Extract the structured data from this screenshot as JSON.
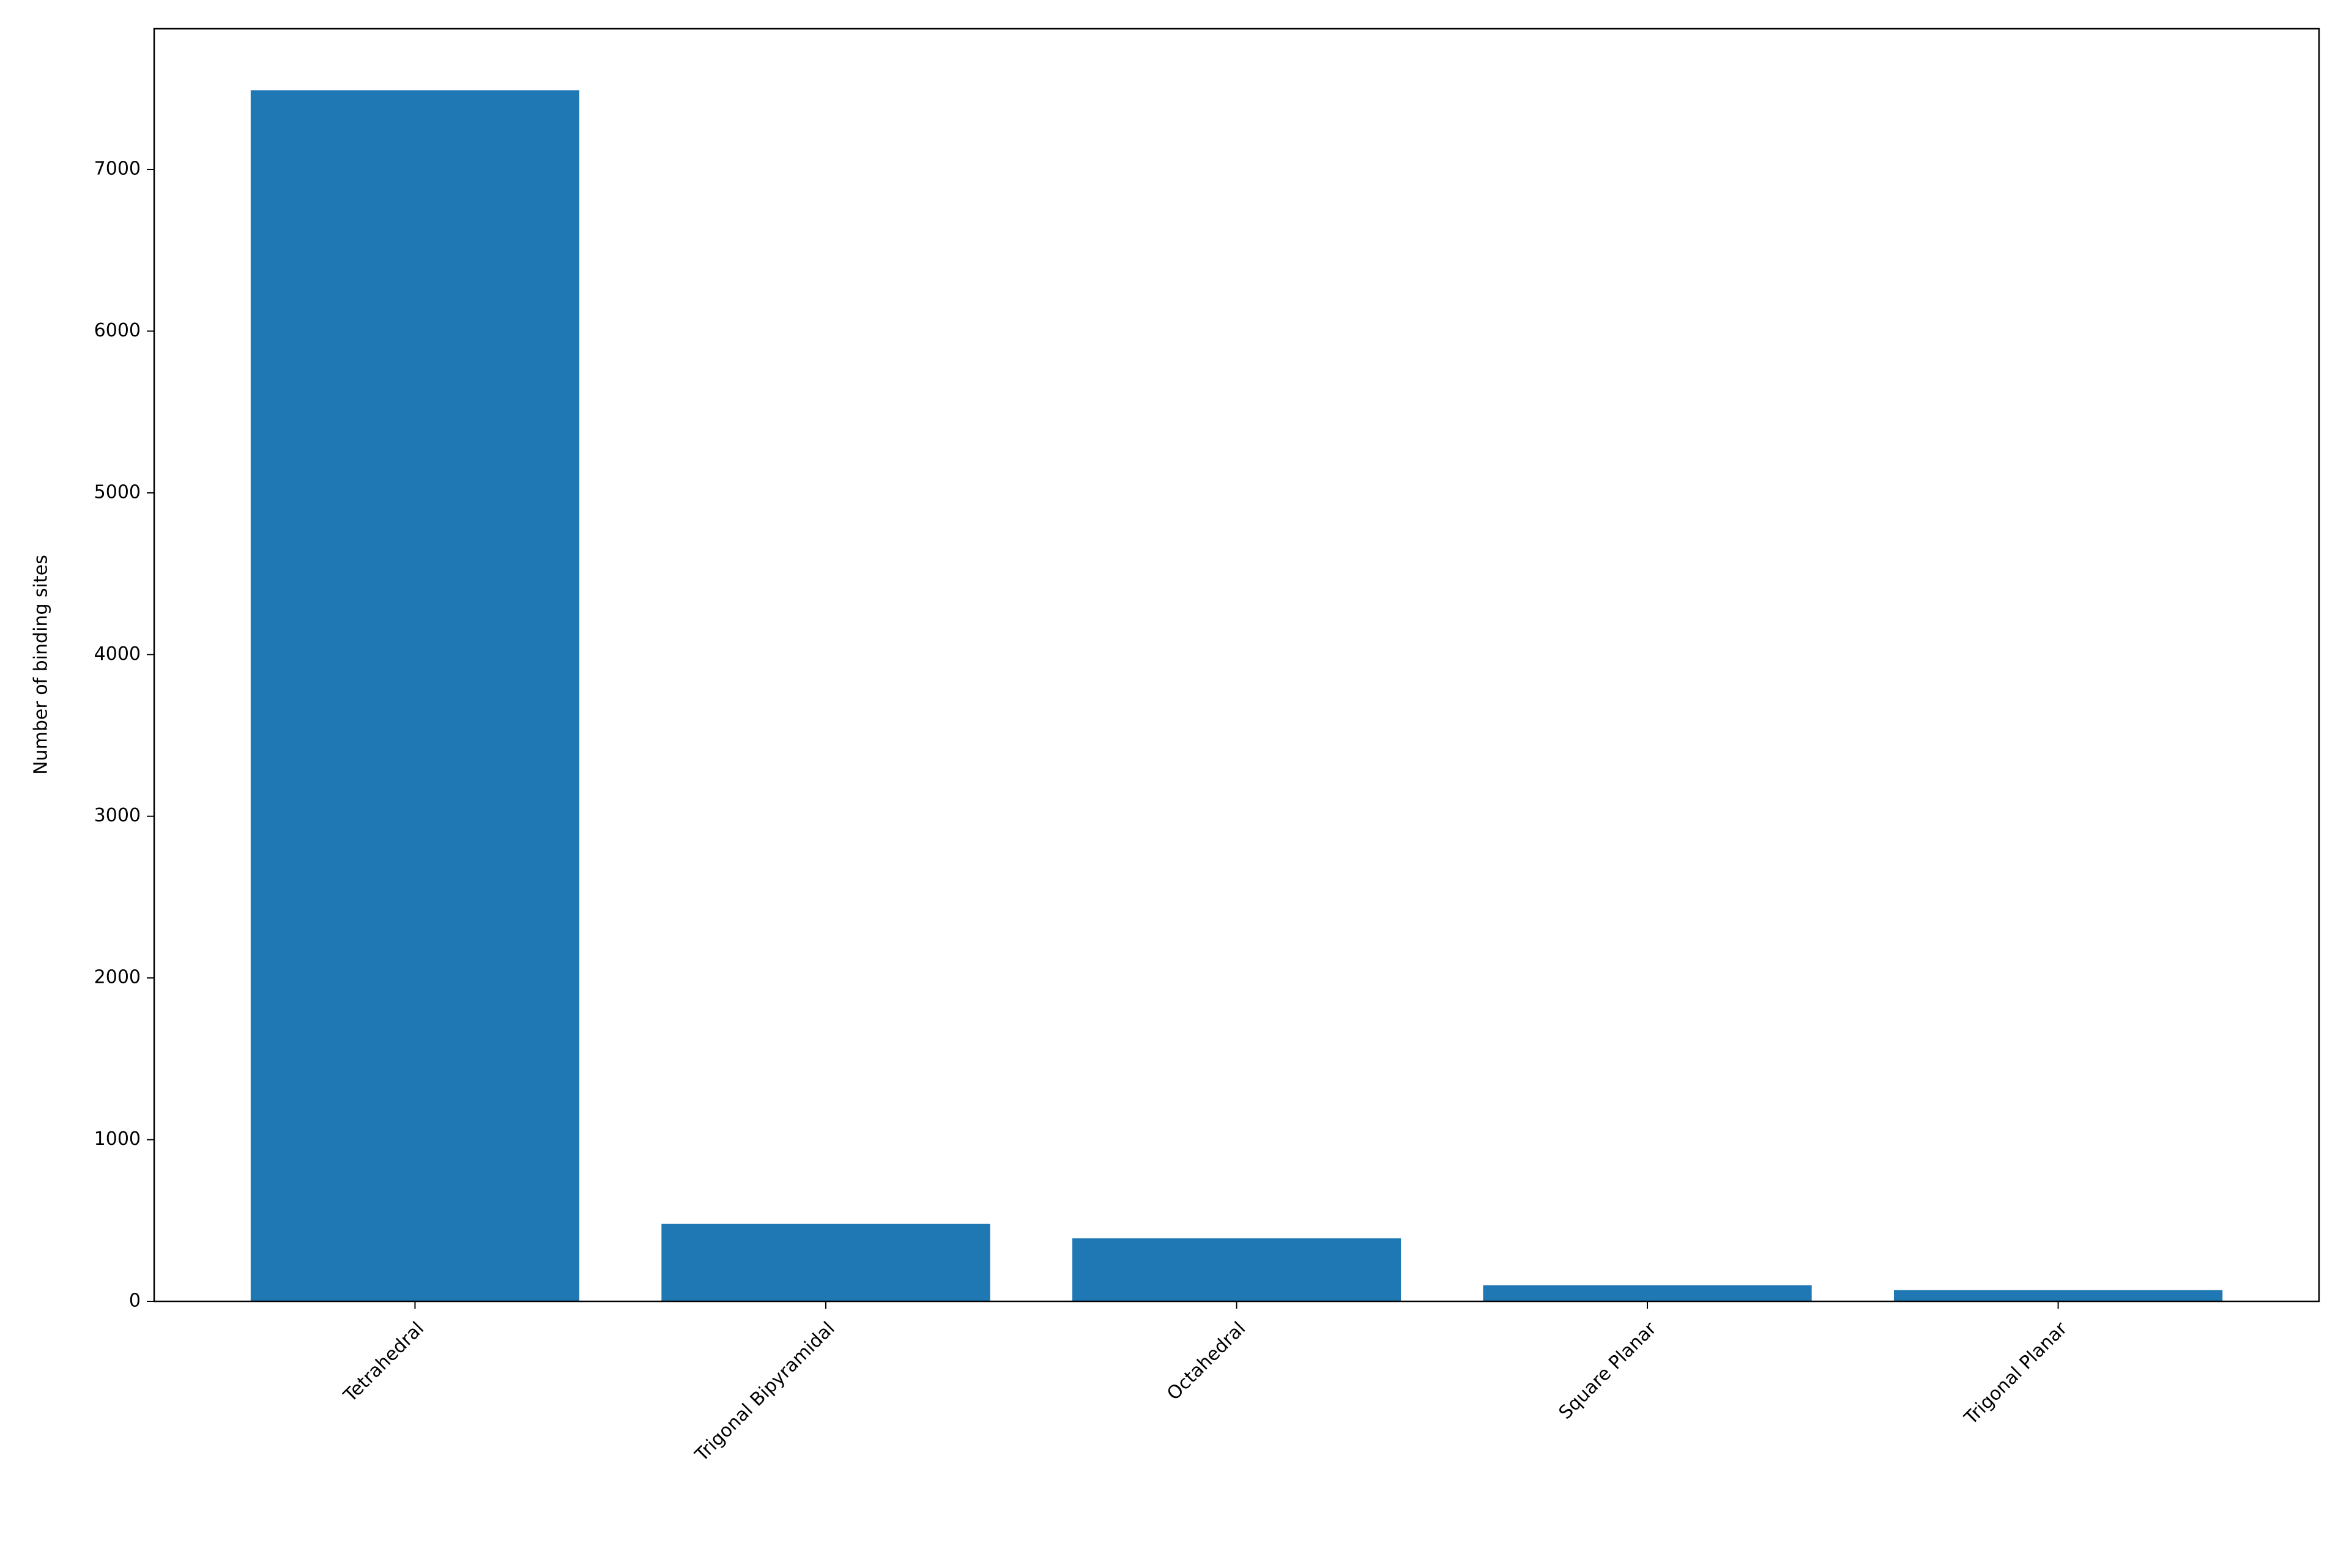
{
  "chart_data": {
    "type": "bar",
    "y_label": "Number of binding sites",
    "categories": [
      "Tetrahedral",
      "Trigonal Bipyramidal",
      "Octahedral",
      "Square Planar",
      "Trigonal Planar"
    ],
    "values": [
      7490,
      480,
      390,
      100,
      70
    ],
    "color": "#1f77b4",
    "ylim": [
      0,
      7870
    ],
    "yticks": [
      0,
      1000,
      2000,
      3000,
      4000,
      5000,
      6000,
      7000
    ],
    "grid": false
  }
}
